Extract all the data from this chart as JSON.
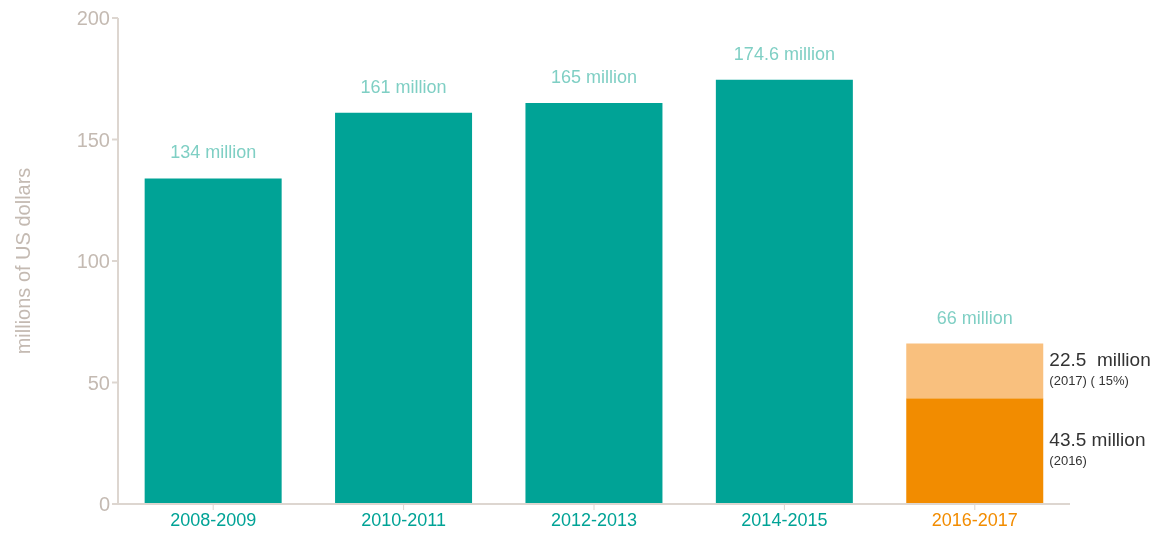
{
  "chart_data": {
    "type": "bar",
    "ylabel": "millions of US dollars",
    "categories": [
      "2008-2009",
      "2010-2011",
      "2012-2013",
      "2014-2015",
      "2016-2017"
    ],
    "series": [
      {
        "colors": [
          "#00a396",
          "#00a396",
          "#00a396",
          "#00a396",
          "#f28c00"
        ],
        "values": [
          134,
          161,
          165,
          174.6,
          43.5
        ]
      },
      {
        "color": "#f9c07e",
        "values": [
          null,
          null,
          null,
          null,
          22.5
        ]
      }
    ],
    "stacked": true,
    "totals": [
      "134 million",
      "161 million",
      "165 million",
      "174.6 million",
      "66 million"
    ],
    "annotations": [
      "22.5  million",
      "(2017) ( 15%)",
      "43.5 million",
      "(2016)"
    ],
    "ylim": [
      0,
      200
    ],
    "yticks": [
      0,
      50,
      100,
      150,
      200
    ],
    "grid": false,
    "legend": false
  }
}
